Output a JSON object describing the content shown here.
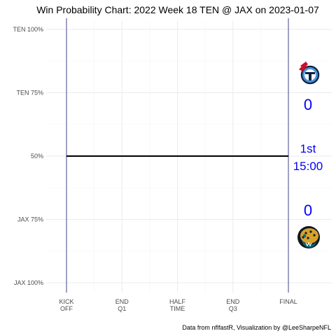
{
  "chart_data": {
    "type": "line",
    "title": "Win Probability Chart: 2022 Week 18 TEN @ JAX on 2023-01-07",
    "xlabel": "",
    "ylabel": "",
    "x_ticks": [
      {
        "value": 0,
        "lines": [
          "KICK",
          "OFF"
        ]
      },
      {
        "value": 900,
        "lines": [
          "END",
          "Q1"
        ]
      },
      {
        "value": 1800,
        "lines": [
          "HALF",
          "TIME"
        ]
      },
      {
        "value": 2700,
        "lines": [
          "END",
          "Q3"
        ]
      },
      {
        "value": 3600,
        "lines": [
          "FINAL"
        ]
      }
    ],
    "y_ticks": [
      {
        "value": 0,
        "label": "JAX 100%"
      },
      {
        "value": 0.25,
        "label": "JAX 75%"
      },
      {
        "value": 0.5,
        "label": "50%"
      },
      {
        "value": 0.75,
        "label": "TEN 75%"
      },
      {
        "value": 1,
        "label": "TEN 100%"
      }
    ],
    "xlim": [
      0,
      3600
    ],
    "ylim": [
      0,
      1
    ],
    "grid": true,
    "series": [
      {
        "values": [
          {
            "x": 0,
            "y": 0.5
          },
          {
            "x": 3600,
            "y": 0.5
          }
        ],
        "color": "#000000"
      }
    ],
    "reference_lines": {
      "x": [
        0,
        3600
      ],
      "color": "#191970"
    },
    "teams": {
      "away": {
        "abbr": "TEN",
        "score": "0",
        "logo": "titans-logo"
      },
      "home": {
        "abbr": "JAX",
        "score": "0",
        "logo": "jaguars-logo"
      }
    },
    "game_state": {
      "quarter": "1st",
      "clock": "15:00"
    },
    "caption": "Data from nflfastR, Visualization by @LeeSharpeNFL"
  }
}
